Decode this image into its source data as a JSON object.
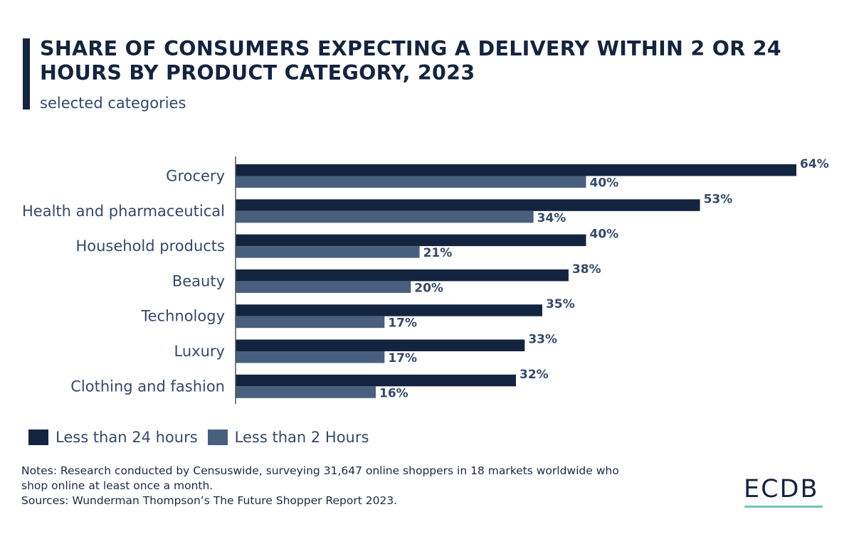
{
  "chart_data": {
    "type": "bar",
    "orientation": "horizontal",
    "title": "SHARE OF CONSUMERS EXPECTING A DELIVERY WITHIN 2 OR 24 HOURS BY PRODUCT CATEGORY, 2023",
    "subtitle": "selected categories",
    "categories": [
      "Grocery",
      "Health and pharmaceutical",
      "Household products",
      "Beauty",
      "Technology",
      "Luxury",
      "Clothing and fashion"
    ],
    "series": [
      {
        "name": "Less than 24 hours",
        "color": "#13243f",
        "values": [
          64,
          53,
          40,
          38,
          35,
          33,
          32
        ]
      },
      {
        "name": "Less than 2 Hours",
        "color": "#485f7d",
        "values": [
          40,
          34,
          21,
          20,
          17,
          17,
          16
        ]
      }
    ],
    "unit": "%",
    "legend": "bottom-left",
    "grid": false
  },
  "notes": [
    "Notes: Research conducted by Censuswide, surveying 31,647 online shoppers in 18 markets worldwide who",
    "shop online at least once a month.",
    "Sources: Wunderman Thompson’s The Future Shopper Report 2023."
  ],
  "logo": "ECDB"
}
